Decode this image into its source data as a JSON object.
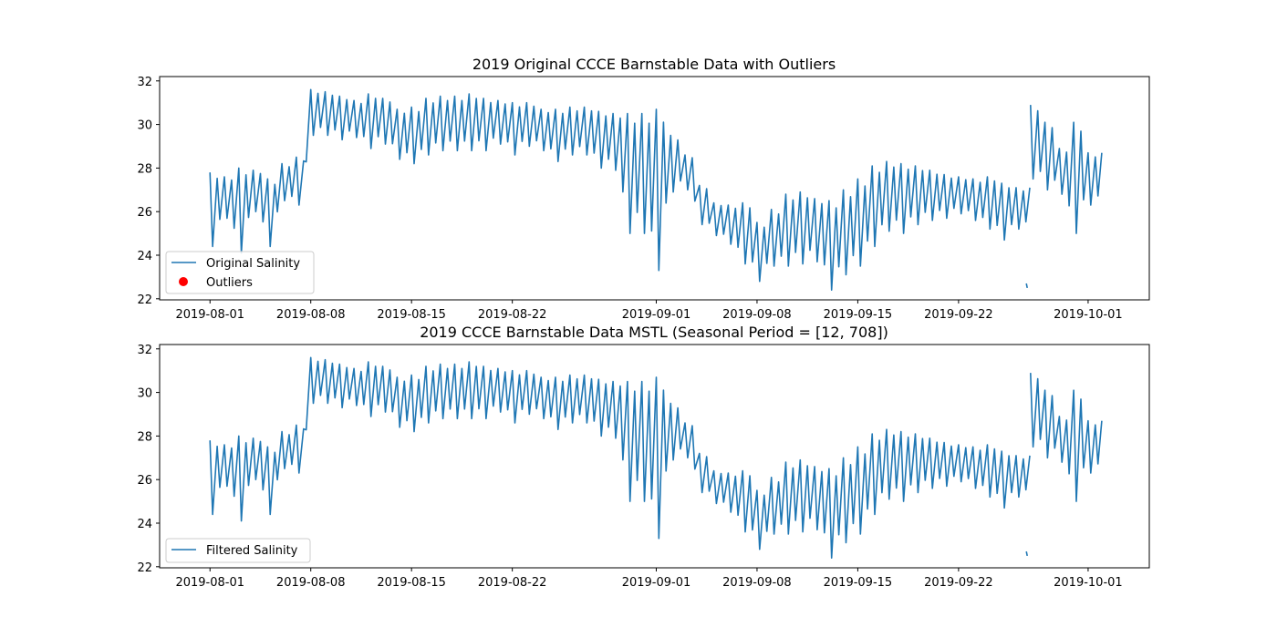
{
  "chart_data": [
    {
      "type": "line",
      "title": "2019 Original CCCE Barnstable Data with Outliers",
      "xlabel": "",
      "ylabel": "",
      "xlim": [
        "2019-07-28T12:00",
        "2019-10-05T06:00"
      ],
      "ylim": [
        21.95,
        32.2
      ],
      "grid": false,
      "legend_position": "lower-left",
      "x_ticks": [
        "2019-08-01",
        "2019-08-08",
        "2019-08-15",
        "2019-08-22",
        "2019-09-01",
        "2019-09-08",
        "2019-09-15",
        "2019-09-22",
        "2019-10-01"
      ],
      "y_ticks": [
        22,
        24,
        26,
        28,
        30,
        32
      ],
      "legend": [
        "Original Salinity",
        "Outliers"
      ],
      "series": [
        {
          "name": "Original Salinity",
          "color": "#1f77b4",
          "style": "line",
          "segments": [
            {
              "x": [
                "2019-08-01",
                "2019-08-02",
                "2019-08-03",
                "2019-08-04",
                "2019-08-05",
                "2019-08-06",
                "2019-08-07",
                "2019-08-08",
                "2019-08-09",
                "2019-08-10",
                "2019-08-11",
                "2019-08-12",
                "2019-08-13",
                "2019-08-14",
                "2019-08-15",
                "2019-08-16",
                "2019-08-17",
                "2019-08-18",
                "2019-08-19",
                "2019-08-20",
                "2019-08-21",
                "2019-08-22",
                "2019-08-23",
                "2019-08-24",
                "2019-08-25",
                "2019-08-26",
                "2019-08-27",
                "2019-08-28",
                "2019-08-29",
                "2019-08-30",
                "2019-08-31",
                "2019-09-01",
                "2019-09-02",
                "2019-09-03",
                "2019-09-04",
                "2019-09-05",
                "2019-09-06",
                "2019-09-07",
                "2019-09-08",
                "2019-09-09",
                "2019-09-10",
                "2019-09-11",
                "2019-09-12",
                "2019-09-13",
                "2019-09-14",
                "2019-09-15",
                "2019-09-16",
                "2019-09-17",
                "2019-09-18",
                "2019-09-19",
                "2019-09-20",
                "2019-09-21",
                "2019-09-22",
                "2019-09-23",
                "2019-09-24",
                "2019-09-25",
                "2019-09-26"
              ],
              "y_high": [
                27.8,
                27.6,
                28.0,
                27.9,
                27.5,
                28.2,
                28.5,
                31.6,
                31.5,
                31.3,
                31.1,
                31.4,
                31.2,
                30.7,
                30.8,
                31.2,
                31.3,
                31.3,
                31.4,
                31.2,
                31.1,
                31.0,
                31.0,
                30.7,
                30.7,
                30.8,
                30.8,
                30.6,
                30.5,
                30.5,
                30.5,
                30.7,
                29.5,
                28.6,
                27.2,
                26.4,
                26.3,
                26.4,
                25.5,
                26.1,
                26.8,
                26.9,
                26.6,
                26.5,
                27.0,
                27.5,
                28.1,
                28.3,
                28.2,
                28.1,
                27.9,
                27.7,
                27.6,
                27.5,
                27.6,
                27.3,
                27.1
              ],
              "y_low": [
                24.4,
                25.7,
                24.1,
                26.0,
                24.4,
                26.5,
                26.3,
                29.5,
                29.5,
                29.3,
                29.4,
                28.9,
                29.1,
                28.4,
                28.2,
                28.6,
                28.8,
                28.8,
                28.8,
                28.8,
                29.1,
                28.6,
                29.0,
                28.8,
                28.3,
                28.6,
                28.6,
                28.0,
                27.9,
                25.0,
                25.0,
                23.3,
                26.9,
                27.0,
                25.4,
                24.9,
                24.5,
                23.6,
                22.8,
                23.5,
                23.5,
                23.6,
                23.7,
                22.4,
                23.1,
                23.5,
                24.4,
                25.1,
                25.0,
                25.4,
                25.6,
                25.7,
                25.9,
                25.6,
                25.2,
                24.7,
                25.2
              ]
            },
            {
              "x": [
                "2019-09-27",
                "2019-09-28",
                "2019-09-29",
                "2019-09-30",
                "2019-10-01"
              ],
              "y_high": [
                30.9,
                30.1,
                28.9,
                30.1,
                28.7
              ],
              "y_low": [
                27.5,
                27.0,
                26.8,
                25.0,
                26.3
              ]
            }
          ],
          "isolated_points": [
            {
              "x": "2019-08-01",
              "y": 27.8
            },
            {
              "x": "2019-09-26T17:00",
              "y": 22.7
            },
            {
              "x": "2019-09-26T17:00",
              "y": 22.5
            }
          ]
        },
        {
          "name": "Outliers",
          "color": "#ff0000",
          "style": "scatter",
          "x": [],
          "y": []
        }
      ]
    },
    {
      "type": "line",
      "title": "2019 CCCE Barnstable Data MSTL (Seasonal Period = [12, 708])",
      "xlabel": "",
      "ylabel": "",
      "xlim": [
        "2019-07-28T12:00",
        "2019-10-05T06:00"
      ],
      "ylim": [
        21.95,
        32.2
      ],
      "grid": false,
      "legend_position": "lower-left",
      "x_ticks": [
        "2019-08-01",
        "2019-08-08",
        "2019-08-15",
        "2019-08-22",
        "2019-09-01",
        "2019-09-08",
        "2019-09-15",
        "2019-09-22",
        "2019-10-01"
      ],
      "y_ticks": [
        22,
        24,
        26,
        28,
        30,
        32
      ],
      "legend": [
        "Filtered Salinity"
      ],
      "series": [
        {
          "name": "Filtered Salinity",
          "color": "#1f77b4",
          "style": "line",
          "same_as_panel_1": true
        }
      ]
    }
  ]
}
